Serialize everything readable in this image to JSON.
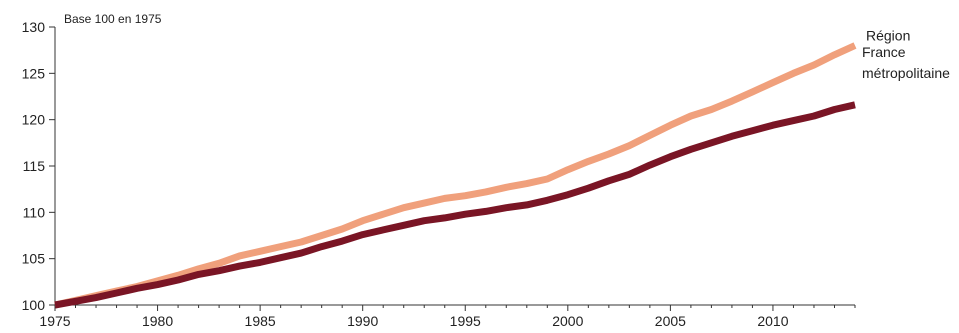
{
  "chart_data": {
    "type": "line",
    "title": "",
    "note": "Base 100 en 1975",
    "xlabel": "",
    "ylabel": "",
    "xlim": [
      1975,
      2014
    ],
    "ylim": [
      100,
      130
    ],
    "x_ticks": [
      1975,
      1980,
      1985,
      1990,
      1995,
      2000,
      2005,
      2010
    ],
    "y_ticks": [
      100,
      105,
      110,
      115,
      120,
      125,
      130
    ],
    "x_tick_labels": [
      "1975",
      "1980",
      "1985",
      "1990",
      "1995",
      "2000",
      "2005",
      "2010"
    ],
    "y_tick_labels": [
      "100",
      "105",
      "110",
      "115",
      "120",
      "125",
      "130"
    ],
    "grid": false,
    "legend": "inline at line ends",
    "x": [
      1975,
      1976,
      1977,
      1978,
      1979,
      1980,
      1981,
      1982,
      1983,
      1984,
      1985,
      1986,
      1987,
      1988,
      1989,
      1990,
      1991,
      1992,
      1993,
      1994,
      1995,
      1996,
      1997,
      1998,
      1999,
      2000,
      2001,
      2002,
      2003,
      2004,
      2005,
      2006,
      2007,
      2008,
      2009,
      2010,
      2011,
      2012,
      2013,
      2014
    ],
    "series": [
      {
        "name": "Région",
        "color": "#f0a07c",
        "values": [
          100.0,
          100.5,
          101.0,
          101.5,
          102.0,
          102.6,
          103.2,
          103.9,
          104.5,
          105.3,
          105.8,
          106.3,
          106.8,
          107.5,
          108.2,
          109.1,
          109.8,
          110.5,
          111.0,
          111.5,
          111.8,
          112.2,
          112.7,
          113.1,
          113.6,
          114.6,
          115.5,
          116.3,
          117.2,
          118.3,
          119.4,
          120.4,
          121.1,
          122.0,
          123.0,
          124.0,
          125.0,
          125.9,
          127.0,
          128.0
        ]
      },
      {
        "name": "France métropolitaine",
        "name_lines": [
          "France",
          "métropolitaine"
        ],
        "color": "#7a1525",
        "values": [
          100.0,
          100.4,
          100.8,
          101.3,
          101.8,
          102.2,
          102.7,
          103.3,
          103.7,
          104.2,
          104.6,
          105.1,
          105.6,
          106.3,
          106.9,
          107.6,
          108.1,
          108.6,
          109.1,
          109.4,
          109.8,
          110.1,
          110.5,
          110.8,
          111.3,
          111.9,
          112.6,
          113.4,
          114.1,
          115.1,
          116.0,
          116.8,
          117.5,
          118.2,
          118.8,
          119.4,
          119.9,
          120.4,
          121.1,
          121.6
        ]
      }
    ]
  }
}
